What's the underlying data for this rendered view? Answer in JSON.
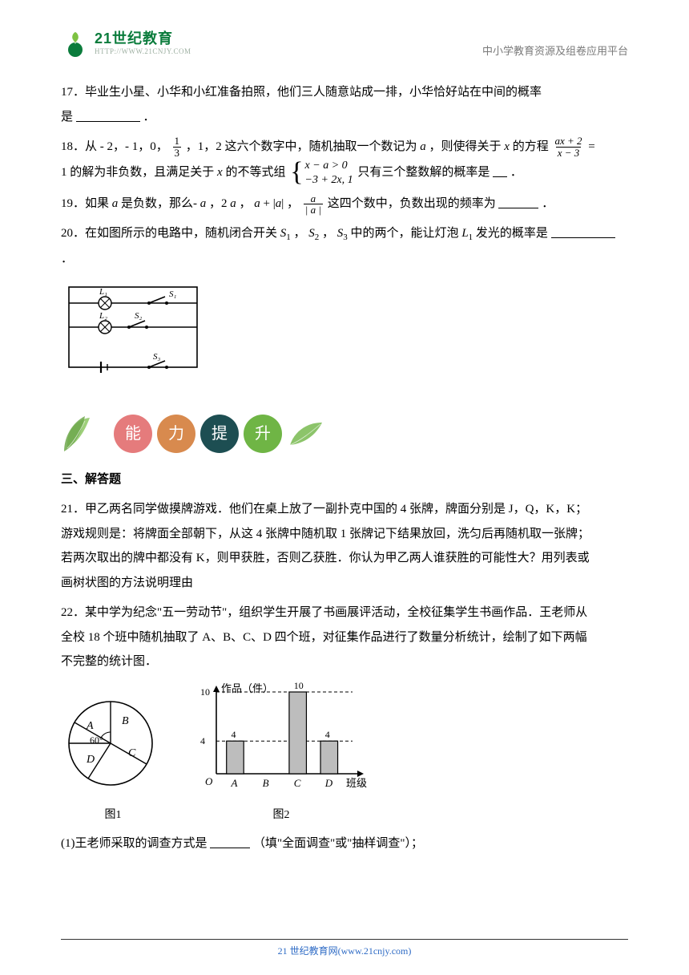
{
  "header": {
    "logo_cn": "21世纪教育",
    "logo_en": "HTTP://WWW.21CNJY.COM",
    "right": "中小学教育资源及组卷应用平台"
  },
  "q17": {
    "line1": "17．毕业生小星、小华和小红准备拍照，他们三人随意站成一排，小华恰好站在中间的概率",
    "line2_prefix": "是",
    "line2_suffix": "．"
  },
  "q18": {
    "prefix": "18．从 - 2，- 1，0，",
    "frac1_num": "1",
    "frac1_den": "3",
    "mid1": "，1，2 这六个数字中，随机抽取一个数记为 ",
    "var_a": "a",
    "mid2": "，则使得关于 ",
    "var_x": "x",
    "mid3": " 的方程",
    "rhs_num": "ax + 2",
    "rhs_den": "x − 3",
    "mid4": " =",
    "line2_a": "1 的解为非负数，且满足关于 ",
    "line2_b": " 的不等式组",
    "sys1": "x − a > 0",
    "sys2": "−3 + 2x,  1",
    "line2_c": " 只有三个整数解的概率是",
    "suffix": "．"
  },
  "q19": {
    "prefix": "19．如果 ",
    "var_a": "a",
    "mid1": " 是负数，那么- ",
    "mid2": " ，2",
    "mid3": " ，",
    "term3_a": "a",
    "term3_plus": " + |",
    "term3_b": "a",
    "term3_end": "| ，",
    "frac_num": "a",
    "frac_den": "| a |",
    "tail": " 这四个数中，负数出现的频率为",
    "suffix": "．"
  },
  "q20": {
    "text_a": "20．在如图所示的电路中，随机闭合开关 ",
    "s1": "S",
    "sub1": "1",
    "text_b": "，",
    "s2": "S",
    "sub2": "2",
    "text_c": "，",
    "s3": "S",
    "sub3": "3",
    "text_d": " 中的两个，能让灯泡 ",
    "l1": "L",
    "subl": "1",
    "text_e": " 发光的概率是",
    "suffix": "．"
  },
  "circuit": {
    "L1": "L₁",
    "S1": "S₁",
    "L2": "L₂",
    "S2": "S₂",
    "S3": "S₃"
  },
  "badges": {
    "c1": {
      "bg": "#e57b7c",
      "text": "能"
    },
    "c2": {
      "bg": "#d88a4e",
      "text": "力"
    },
    "c3": {
      "bg": "#1d4e52",
      "text": "提"
    },
    "c4": {
      "bg": "#6fb545",
      "text": "升"
    }
  },
  "sec3": {
    "heading": "三、解答题"
  },
  "q21": {
    "l1": "21．甲乙两名同学做摸牌游戏．他们在桌上放了一副扑克中国的 4 张牌，牌面分别是 J，Q，K，K；",
    "l2": "游戏规则是：将牌面全部朝下，从这 4 张牌中随机取 1 张牌记下结果放回，洗匀后再随机取一张牌；",
    "l3": "若两次取出的牌中都没有 K，则甲获胜，否则乙获胜．你认为甲乙两人谁获胜的可能性大？用列表或",
    "l4": "画树状图的方法说明理由"
  },
  "q22": {
    "l1": "22．某中学为纪念\"五一劳动节\"，组织学生开展了书画展评活动，全校征集学生书画作品．王老师从",
    "l2": "全校 18 个班中随机抽取了 A、B、C、D 四个班，对征集作品进行了数量分析统计，绘制了如下两幅",
    "l3": "不完整的统计图．",
    "sub1_a": "(1)王老师采取的调查方式是",
    "sub1_b": "（填\"全面调查\"或\"抽样调查\"）；"
  },
  "pie": {
    "labels": {
      "A": "A",
      "B": "B",
      "C": "C",
      "D": "D"
    },
    "angle_label": "60°",
    "caption": "图1"
  },
  "bar": {
    "y_title": "作品（件）",
    "x_title": "班级",
    "y_max": 10,
    "ticks": [
      4,
      10
    ],
    "categories": [
      "A",
      "B",
      "C",
      "D"
    ],
    "values": [
      4,
      null,
      10,
      4
    ],
    "bar_fill": "#bdbdbd",
    "bar_stroke": "#000000",
    "caption": "图2"
  },
  "footer": {
    "text_a": "21 世纪教育网(www.21cnjy.com)"
  }
}
